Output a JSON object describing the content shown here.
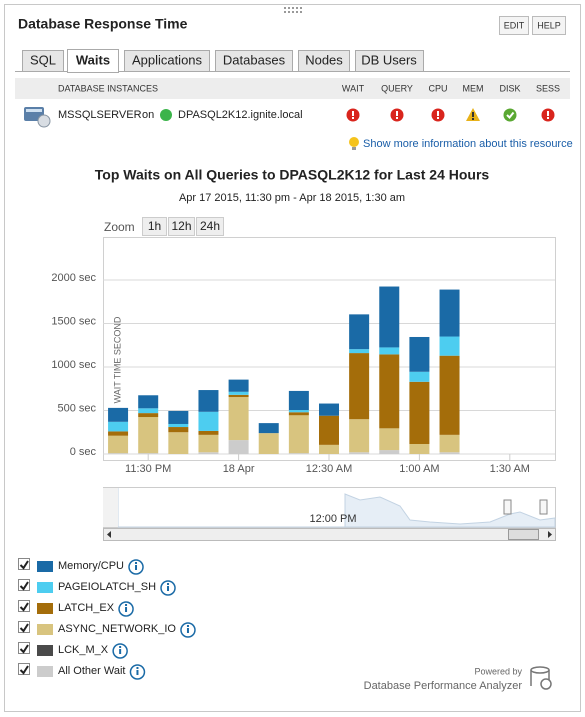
{
  "header": {
    "title": "Database Response Time",
    "buttons": [
      "EDIT",
      "HELP"
    ]
  },
  "tabs": [
    "SQL",
    "Waits",
    "Applications",
    "Databases",
    "Nodes",
    "DB Users"
  ],
  "instances_table": {
    "columns": [
      "DATABASE INSTANCES",
      "WAIT",
      "QUERY",
      "CPU",
      "MEM",
      "DISK",
      "SESS"
    ],
    "row": {
      "instance": "MSSQLSERVER",
      "connector": "on",
      "host": "DPASQL2K12.ignite.local"
    }
  },
  "more_info_link": "Show more information about this resource",
  "zoom": {
    "label": "Zoom",
    "buttons": [
      "1h",
      "12h",
      "24h"
    ]
  },
  "chart_data": {
    "type": "bar",
    "stacked": true,
    "title": "Top Waits on All Queries to DPASQL2K12 for Last 24 Hours",
    "subtitle": "Apr 17 2015, 11:30 pm - Apr 18 2015, 1:30 am",
    "y_label": "WAIT TIME SECOND",
    "categories": [
      null,
      "11:30 PM",
      null,
      null,
      "18 Apr",
      null,
      null,
      "12:30 AM",
      null,
      null,
      "1:00 AM",
      null,
      null,
      "1:30 AM",
      null
    ],
    "ylim": [
      0,
      2500
    ],
    "yticks": [
      {
        "value": 0,
        "label": "0 sec"
      },
      {
        "value": 500,
        "label": "500 sec"
      },
      {
        "value": 1000,
        "label": "1000 sec"
      },
      {
        "value": 1500,
        "label": "1500 sec"
      },
      {
        "value": 2000,
        "label": "2000 sec"
      }
    ],
    "grid": true,
    "series": [
      {
        "name": "Memory/CPU",
        "color": "#1a6aa6",
        "values": [
          160,
          150,
          150,
          250,
          140,
          115,
          220,
          140,
          400,
          700,
          400,
          540,
          null,
          null,
          null
        ]
      },
      {
        "name": "PAGEIOLATCH_SH",
        "color": "#4dcdf0",
        "values": [
          110,
          55,
          35,
          220,
          35,
          0,
          25,
          0,
          45,
          80,
          115,
          220,
          null,
          null,
          null
        ]
      },
      {
        "name": "LATCH_EX",
        "color": "#a46d0a",
        "values": [
          50,
          45,
          60,
          45,
          25,
          0,
          35,
          335,
          760,
          850,
          715,
          910,
          null,
          null,
          null
        ]
      },
      {
        "name": "ASYNC_NETWORK_IO",
        "color": "#d8c47f",
        "values": [
          200,
          415,
          250,
          200,
          495,
          240,
          435,
          105,
          380,
          250,
          115,
          200,
          null,
          null,
          null
        ]
      },
      {
        "name": "LCK_M_X",
        "color": "#4a4a4a",
        "values": [
          0,
          0,
          0,
          0,
          0,
          0,
          0,
          0,
          0,
          0,
          0,
          0,
          null,
          null,
          null
        ]
      },
      {
        "name": "All Other Wait",
        "color": "#cccccc",
        "values": [
          10,
          10,
          0,
          20,
          160,
          0,
          10,
          0,
          20,
          45,
          0,
          20,
          null,
          null,
          null
        ]
      }
    ]
  },
  "navigator": {
    "labels": [
      "12:00 PM"
    ]
  },
  "footer": {
    "powered_by": "Powered by",
    "product": "Database Performance Analyzer"
  }
}
